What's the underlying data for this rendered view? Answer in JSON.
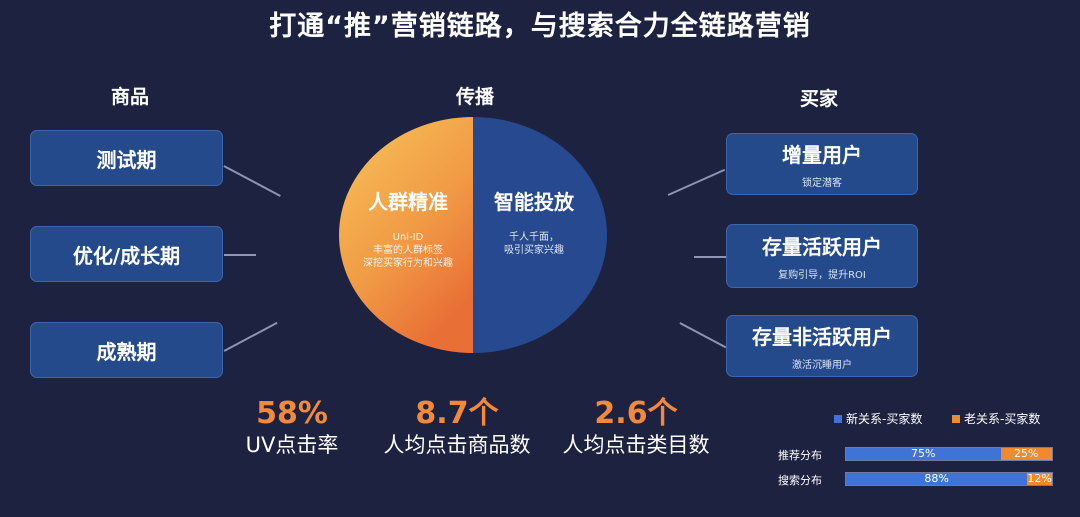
{
  "title": "打通“推”营销链路，与搜索合力全链路营销",
  "columns": {
    "goods": "商品",
    "spread": "传播",
    "buyers": "买家"
  },
  "goods_stages": [
    "测试期",
    "优化/成长期",
    "成熟期"
  ],
  "pie": {
    "left": {
      "title": "人群精准",
      "lines": [
        "Uni-ID",
        "丰富的人群标签",
        "深挖买家行为和兴趣"
      ]
    },
    "right": {
      "title": "智能投放",
      "lines": [
        "千人千面，",
        "吸引买家兴趣"
      ]
    }
  },
  "buyer_groups": [
    {
      "title": "增量用户",
      "sub": "锁定潜客"
    },
    {
      "title": "存量活跃用户",
      "sub": "复购引导，提升ROI"
    },
    {
      "title": "存量非活跃用户",
      "sub": "激活沉睡用户"
    }
  ],
  "metrics": [
    {
      "value": "58%",
      "label": "UV点击率"
    },
    {
      "value": "8.7个",
      "label": "人均点击商品数"
    },
    {
      "value": "2.6个",
      "label": "人均点击类目数"
    }
  ],
  "colors": {
    "new": "#3f73d6",
    "old": "#f08a2e",
    "box": "#254a8c",
    "bg": "#1d2240"
  },
  "chart_data": {
    "type": "bar",
    "stacked": true,
    "orientation": "horizontal",
    "categories": [
      "推荐分布",
      "搜索分布"
    ],
    "series": [
      {
        "name": "新关系-买家数",
        "values": [
          75,
          88
        ],
        "labels": [
          "75%",
          "88%"
        ]
      },
      {
        "name": "老关系-买家数",
        "values": [
          25,
          12
        ],
        "labels": [
          "25%",
          "12%"
        ]
      }
    ],
    "legend": "top"
  }
}
